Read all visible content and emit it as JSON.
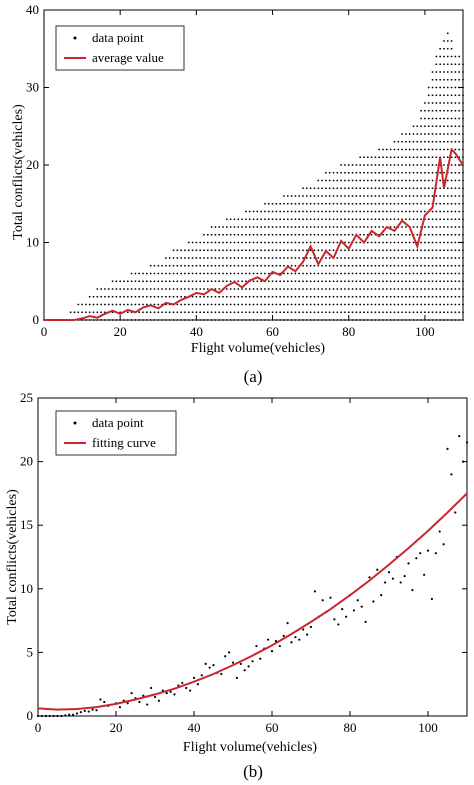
{
  "chart_data": [
    {
      "type": "scatter",
      "panel_label": "(a)",
      "xlabel": "Flight volume(vehicles)",
      "ylabel": "Total conflicts(vehicles)",
      "xlim": [
        0,
        110
      ],
      "ylim": [
        0,
        40
      ],
      "xticks": [
        0,
        20,
        40,
        60,
        80,
        100
      ],
      "yticks": [
        0,
        10,
        20,
        30,
        40
      ],
      "legend_position": "top-left",
      "series": [
        {
          "name": "data point",
          "kind": "points",
          "description": "vertical stacks of integer conflict counts at each integer flight volume from 0 to 110; upper envelope rises from about 2 at x=10 to about 37 at x=106",
          "envelope_x": [
            0,
            5,
            8,
            10,
            15,
            20,
            25,
            30,
            35,
            40,
            45,
            50,
            55,
            60,
            65,
            70,
            75,
            80,
            85,
            90,
            95,
            98,
            100,
            102,
            104,
            106,
            108,
            110
          ],
          "envelope_ymax": [
            0,
            0,
            1,
            2,
            4,
            5,
            6,
            7,
            9,
            10,
            12,
            13,
            14,
            15,
            16,
            17,
            19,
            20,
            21,
            22,
            24,
            25,
            28,
            32,
            35,
            37,
            34,
            33
          ]
        },
        {
          "name": "average value",
          "kind": "line",
          "color": "#c8282d",
          "x": [
            0,
            2,
            4,
            6,
            8,
            10,
            12,
            14,
            16,
            18,
            20,
            22,
            24,
            26,
            28,
            30,
            32,
            34,
            36,
            38,
            40,
            42,
            44,
            46,
            48,
            50,
            52,
            54,
            56,
            58,
            60,
            62,
            64,
            66,
            68,
            70,
            72,
            74,
            76,
            78,
            80,
            82,
            84,
            86,
            88,
            90,
            92,
            94,
            96,
            98,
            100,
            102,
            104,
            105,
            106,
            107,
            108,
            110
          ],
          "y": [
            0,
            0,
            0,
            0,
            0,
            0.2,
            0.5,
            0.3,
            0.8,
            1.2,
            0.8,
            1.3,
            1.0,
            1.6,
            1.9,
            1.5,
            2.2,
            2.0,
            2.6,
            3.0,
            3.5,
            3.3,
            4.0,
            3.5,
            4.4,
            4.9,
            4.2,
            5.1,
            5.5,
            5.0,
            6.2,
            5.8,
            6.9,
            6.3,
            7.5,
            9.5,
            7.2,
            8.9,
            8.0,
            10.2,
            9.2,
            11.0,
            10.0,
            11.5,
            10.8,
            12.0,
            11.5,
            12.8,
            12.0,
            9.5,
            13.5,
            14.5,
            21.0,
            17.0,
            19.5,
            22.0,
            21.5,
            20.0
          ]
        }
      ]
    },
    {
      "type": "scatter",
      "panel_label": "(b)",
      "xlabel": "Flight volume(vehicles)",
      "ylabel": "Total conflicts(vehicles)",
      "xlim": [
        0,
        110
      ],
      "ylim": [
        0,
        25
      ],
      "xticks": [
        0,
        20,
        40,
        60,
        80,
        100
      ],
      "yticks": [
        0,
        5,
        10,
        15,
        20,
        25
      ],
      "legend_position": "top-left",
      "series": [
        {
          "name": "data point",
          "kind": "points",
          "x": [
            0,
            1,
            2,
            3,
            4,
            5,
            6,
            7,
            8,
            9,
            10,
            11,
            12,
            13,
            14,
            15,
            16,
            17,
            18,
            19,
            20,
            21,
            22,
            23,
            24,
            25,
            26,
            27,
            28,
            29,
            30,
            31,
            32,
            33,
            34,
            35,
            36,
            37,
            38,
            39,
            40,
            41,
            42,
            43,
            44,
            45,
            46,
            47,
            48,
            49,
            50,
            51,
            52,
            53,
            54,
            55,
            56,
            57,
            58,
            59,
            60,
            61,
            62,
            63,
            64,
            65,
            66,
            67,
            68,
            69,
            70,
            71,
            72,
            73,
            74,
            75,
            76,
            77,
            78,
            79,
            80,
            81,
            82,
            83,
            84,
            85,
            86,
            87,
            88,
            89,
            90,
            91,
            92,
            93,
            94,
            95,
            96,
            97,
            98,
            99,
            100,
            101,
            102,
            103,
            104,
            105,
            106,
            107,
            108,
            109,
            110
          ],
          "y": [
            0,
            0,
            0,
            0,
            0,
            0,
            0,
            0.05,
            0.1,
            0.1,
            0.2,
            0.3,
            0.4,
            0.35,
            0.5,
            0.45,
            1.3,
            1.1,
            0.8,
            0.9,
            1.0,
            0.7,
            1.2,
            1.0,
            1.8,
            1.4,
            1.1,
            1.6,
            0.9,
            2.2,
            1.5,
            1.2,
            2.0,
            1.8,
            1.9,
            1.7,
            2.4,
            2.6,
            2.2,
            2.0,
            3.0,
            2.5,
            3.2,
            4.1,
            3.8,
            4.0,
            3.4,
            3.3,
            4.7,
            5.0,
            4.2,
            3.0,
            4.1,
            3.6,
            3.9,
            4.3,
            5.5,
            4.5,
            5.3,
            6.0,
            5.1,
            5.9,
            5.5,
            6.3,
            7.3,
            5.8,
            6.2,
            6.0,
            6.8,
            6.4,
            7.0,
            9.8,
            7.8,
            9.1,
            8.2,
            9.3,
            7.6,
            7.2,
            8.4,
            7.8,
            9.5,
            8.3,
            9.1,
            8.6,
            7.4,
            10.9,
            9.0,
            11.5,
            9.5,
            10.5,
            11.3,
            10.8,
            12.5,
            10.5,
            11.0,
            12.0,
            9.9,
            12.4,
            12.8,
            11.1,
            13.0,
            9.2,
            12.8,
            14.5,
            13.5,
            21.0,
            19.0,
            16.0,
            22.0,
            20.0,
            21.5
          ]
        },
        {
          "name": "fitting curve",
          "kind": "line",
          "color": "#c8282d",
          "x": [
            0,
            5,
            10,
            15,
            20,
            25,
            30,
            35,
            40,
            45,
            50,
            55,
            60,
            65,
            70,
            75,
            80,
            85,
            90,
            95,
            100,
            105,
            110
          ],
          "y": [
            0.6,
            0.5,
            0.55,
            0.7,
            0.95,
            1.3,
            1.7,
            2.15,
            2.7,
            3.3,
            4.0,
            4.75,
            5.55,
            6.45,
            7.4,
            8.4,
            9.5,
            10.65,
            11.9,
            13.2,
            14.55,
            16.0,
            17.5
          ]
        }
      ]
    }
  ]
}
